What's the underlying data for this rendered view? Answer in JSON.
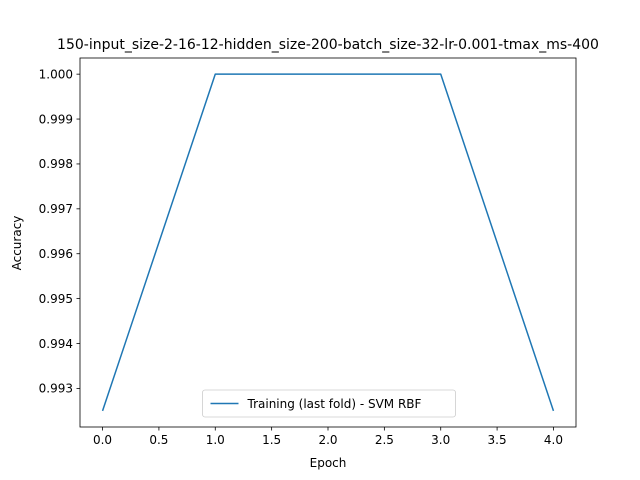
{
  "chart_data": {
    "type": "line",
    "title": "150-input_size-2-16-12-hidden_size-200-batch_size-32-lr-0.001-tmax_ms-400",
    "xlabel": "Epoch",
    "ylabel": "Accuracy",
    "xlim": [
      -0.2,
      4.2
    ],
    "ylim": [
      0.99214,
      1.00036
    ],
    "x_ticks": [
      0.0,
      0.5,
      1.0,
      1.5,
      2.0,
      2.5,
      3.0,
      3.5,
      4.0
    ],
    "x_tick_labels": [
      "0.0",
      "0.5",
      "1.0",
      "1.5",
      "2.0",
      "2.5",
      "3.0",
      "3.5",
      "4.0"
    ],
    "y_ticks": [
      0.993,
      0.994,
      0.995,
      0.996,
      0.997,
      0.998,
      0.999,
      1.0
    ],
    "y_tick_labels": [
      "0.993",
      "0.994",
      "0.995",
      "0.996",
      "0.997",
      "0.998",
      "0.999",
      "1.000"
    ],
    "grid": false,
    "legend_position": "bottom-center",
    "series": [
      {
        "name": "Training (last fold) - SVM RBF",
        "color": "#1f77b4",
        "x": [
          0,
          1,
          2,
          3,
          4
        ],
        "y": [
          0.9925,
          1.0,
          1.0,
          1.0,
          0.9925
        ]
      }
    ]
  }
}
